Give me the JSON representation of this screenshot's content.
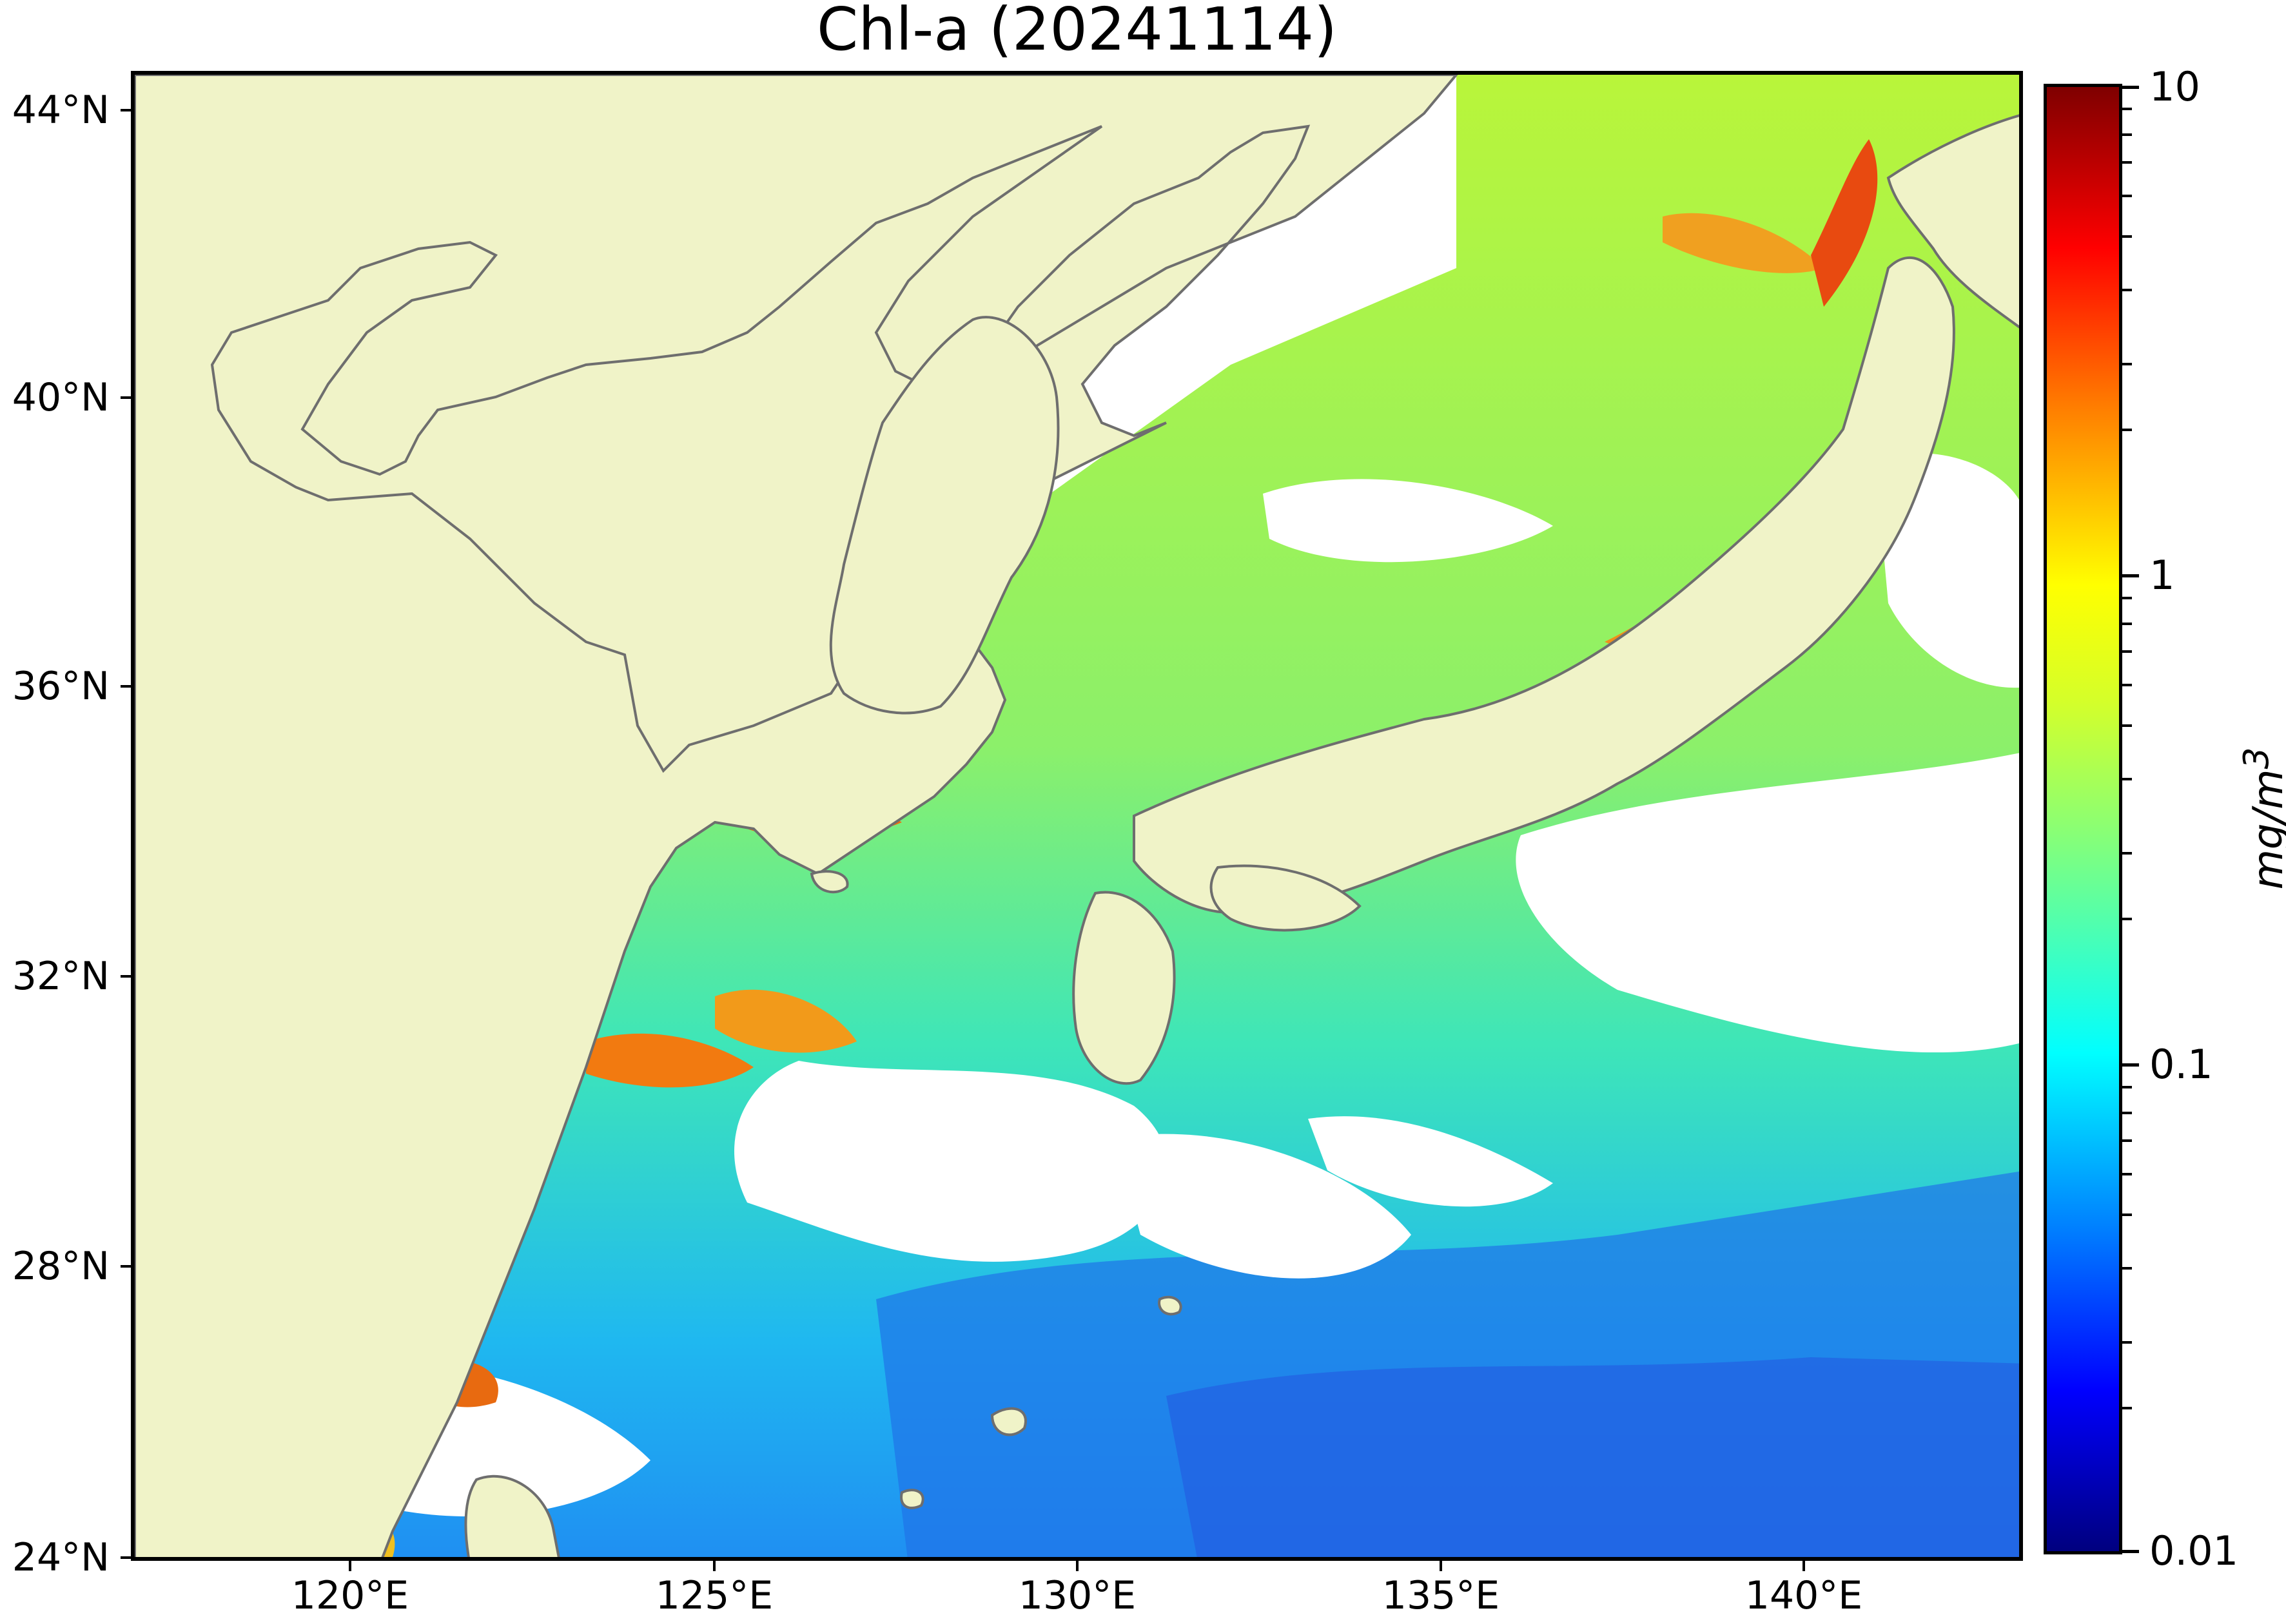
{
  "title": "Chl-a (20241114)",
  "map": {
    "lat_labels": [
      "44°N",
      "40°N",
      "36°N",
      "32°N",
      "28°N",
      "24°N"
    ],
    "lon_labels": [
      "120°E",
      "125°E",
      "130°E",
      "135°E",
      "140°E"
    ],
    "extent": {
      "lon_min": 117,
      "lon_max": 143,
      "lat_min": 24,
      "lat_max": 44.5
    },
    "colors": {
      "land": "#f0f3c8",
      "coastline": "#6e6e6e",
      "no_data": "#ffffff"
    }
  },
  "colorbar": {
    "labels": [
      "10",
      "1",
      "0.1",
      "0.01"
    ],
    "unit": "mg/m",
    "unit_superscript": "3",
    "scale": "log",
    "colormap": "jet"
  }
}
